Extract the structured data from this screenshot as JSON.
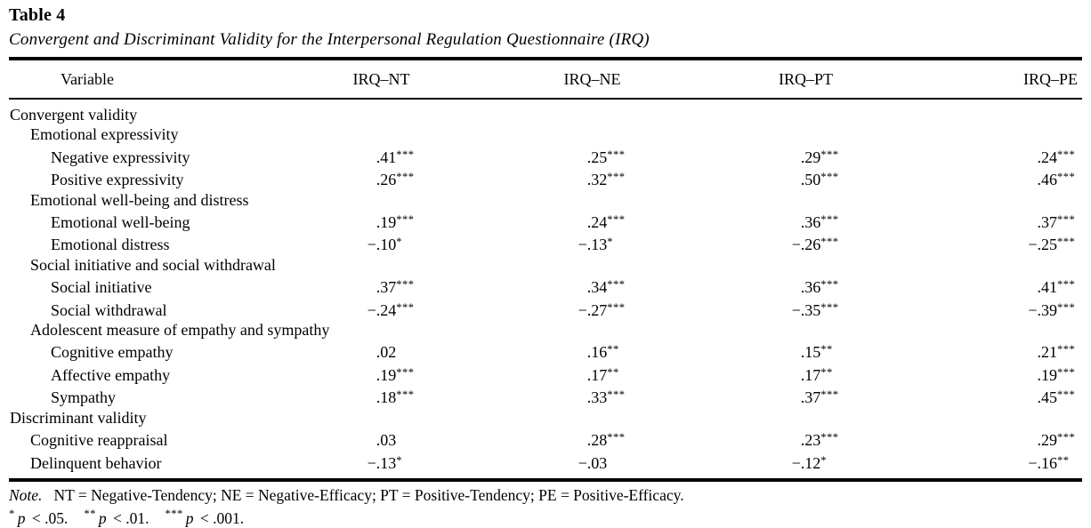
{
  "page": {
    "label": "Table 4",
    "caption": "Convergent and Discriminant Validity for the Interpersonal Regulation Questionnaire (IRQ)"
  },
  "table": {
    "columns": [
      "Variable",
      "IRQ–NT",
      "IRQ–NE",
      "IRQ–PT",
      "IRQ–PE"
    ],
    "rows": [
      {
        "label": "Convergent validity",
        "indent": 0,
        "values": [
          "",
          "",
          "",
          ""
        ]
      },
      {
        "label": "Emotional expressivity",
        "indent": 1,
        "values": [
          "",
          "",
          "",
          ""
        ]
      },
      {
        "label": "Negative expressivity",
        "indent": 2,
        "values": [
          ".41***",
          ".25***",
          ".29***",
          ".24***"
        ]
      },
      {
        "label": "Positive expressivity",
        "indent": 2,
        "values": [
          ".26***",
          ".32***",
          ".50***",
          ".46***"
        ]
      },
      {
        "label": "Emotional well-being and distress",
        "indent": 1,
        "values": [
          "",
          "",
          "",
          ""
        ]
      },
      {
        "label": "Emotional well-being",
        "indent": 2,
        "values": [
          ".19***",
          ".24***",
          ".36***",
          ".37***"
        ]
      },
      {
        "label": "Emotional distress",
        "indent": 2,
        "values": [
          "−.10*",
          "−.13*",
          "−.26***",
          "−.25***"
        ]
      },
      {
        "label": "Social initiative and social withdrawal",
        "indent": 1,
        "values": [
          "",
          "",
          "",
          ""
        ]
      },
      {
        "label": "Social initiative",
        "indent": 2,
        "values": [
          ".37***",
          ".34***",
          ".36***",
          ".41***"
        ]
      },
      {
        "label": "Social withdrawal",
        "indent": 2,
        "values": [
          "−.24***",
          "−.27***",
          "−.35***",
          "−.39***"
        ]
      },
      {
        "label": "Adolescent measure of empathy and sympathy",
        "indent": 1,
        "values": [
          "",
          "",
          "",
          ""
        ]
      },
      {
        "label": "Cognitive empathy",
        "indent": 2,
        "values": [
          ".02",
          ".16**",
          ".15**",
          ".21***"
        ]
      },
      {
        "label": "Affective empathy",
        "indent": 2,
        "values": [
          ".19***",
          ".17**",
          ".17**",
          ".19***"
        ]
      },
      {
        "label": "Sympathy",
        "indent": 2,
        "values": [
          ".18***",
          ".33***",
          ".37***",
          ".45***"
        ]
      },
      {
        "label": "Discriminant validity",
        "indent": 0,
        "values": [
          "",
          "",
          "",
          ""
        ]
      },
      {
        "label": "Cognitive reappraisal",
        "indent": 1,
        "values": [
          ".03",
          ".28***",
          ".23***",
          ".29***"
        ]
      },
      {
        "label": "Delinquent behavior",
        "indent": 1,
        "values": [
          "−.13*",
          "−.03",
          "−.12*",
          "−.16**"
        ]
      }
    ],
    "note_label": "Note.",
    "note_text": "NT = Negative-Tendency; NE = Negative-Efficacy; PT = Positive-Tendency; PE = Positive-Efficacy.",
    "significance": [
      {
        "stars": "*",
        "pvar": "p",
        "rest": "< .05."
      },
      {
        "stars": "**",
        "pvar": "p",
        "rest": "< .01."
      },
      {
        "stars": "***",
        "pvar": "p",
        "rest": "< .001."
      }
    ]
  }
}
